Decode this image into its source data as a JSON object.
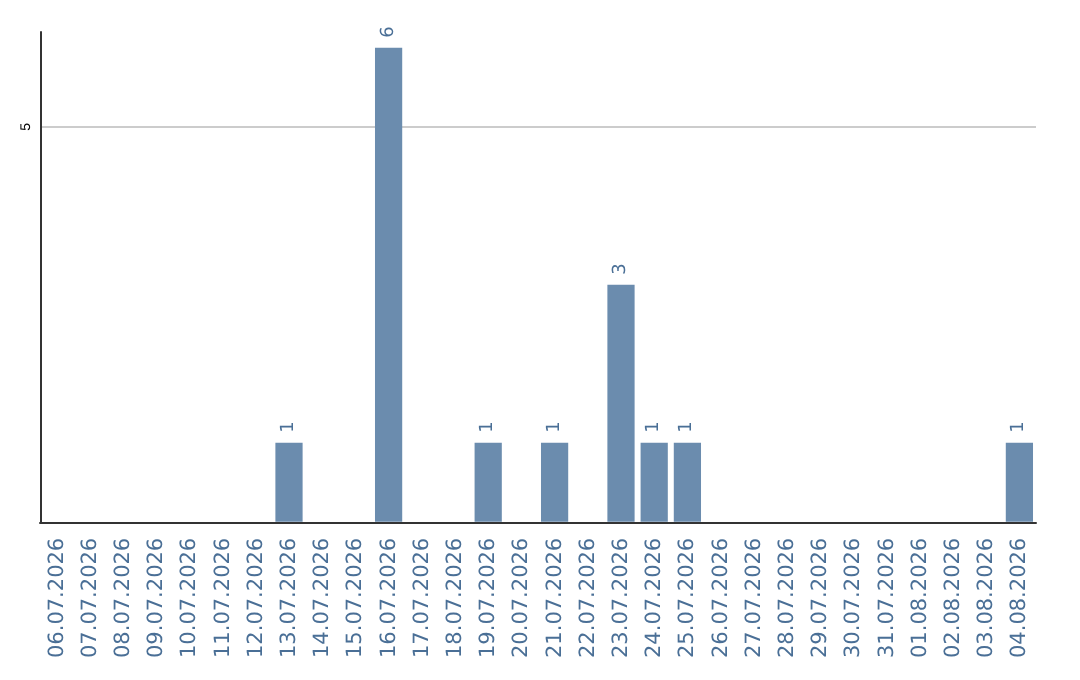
{
  "chart_data": {
    "type": "bar",
    "categories": [
      "06.07.2026",
      "07.07.2026",
      "08.07.2026",
      "09.07.2026",
      "10.07.2026",
      "11.07.2026",
      "12.07.2026",
      "13.07.2026",
      "14.07.2026",
      "15.07.2026",
      "16.07.2026",
      "17.07.2026",
      "18.07.2026",
      "19.07.2026",
      "20.07.2026",
      "21.07.2026",
      "22.07.2026",
      "23.07.2026",
      "24.07.2026",
      "25.07.2026",
      "26.07.2026",
      "27.07.2026",
      "28.07.2026",
      "29.07.2026",
      "30.07.2026",
      "31.07.2026",
      "01.08.2026",
      "02.08.2026",
      "03.08.2026",
      "04.08.2026"
    ],
    "values": [
      0,
      0,
      0,
      0,
      0,
      0,
      0,
      1,
      0,
      0,
      6,
      0,
      0,
      1,
      0,
      1,
      0,
      3,
      1,
      1,
      0,
      0,
      0,
      0,
      0,
      0,
      0,
      0,
      0,
      1
    ],
    "value_labels": [
      null,
      null,
      null,
      null,
      null,
      null,
      null,
      "1",
      null,
      null,
      "6",
      null,
      null,
      "1",
      null,
      "1",
      null,
      "3",
      "1",
      "1",
      null,
      null,
      null,
      null,
      null,
      null,
      null,
      null,
      null,
      "1"
    ],
    "color": "#6b8cae",
    "ylim": [
      0,
      6.2
    ],
    "yticks": [
      5
    ],
    "grid": "y"
  }
}
